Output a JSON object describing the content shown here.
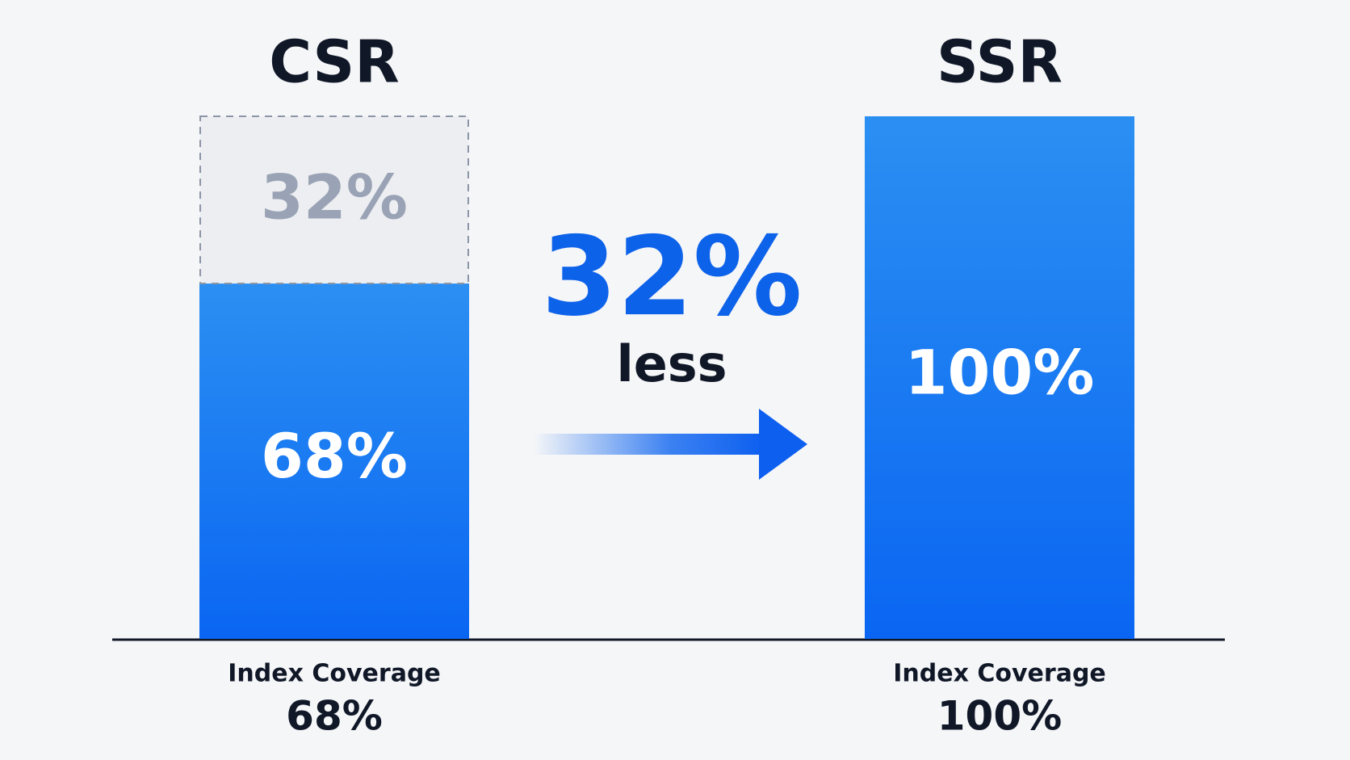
{
  "chart_data": {
    "type": "bar",
    "categories": [
      "CSR",
      "SSR"
    ],
    "values": [
      68,
      100
    ],
    "value_labels": [
      "68%",
      "100%"
    ],
    "color": "#1677f2",
    "gap": {
      "values": [
        32,
        null
      ],
      "value_labels": [
        "32%",
        null
      ],
      "color": "#eceef1"
    },
    "footer_labels": [
      "Index Coverage",
      "Index Coverage"
    ],
    "annotation": {
      "label": "32%",
      "text": "less"
    },
    "ylim": [
      0,
      100
    ]
  }
}
